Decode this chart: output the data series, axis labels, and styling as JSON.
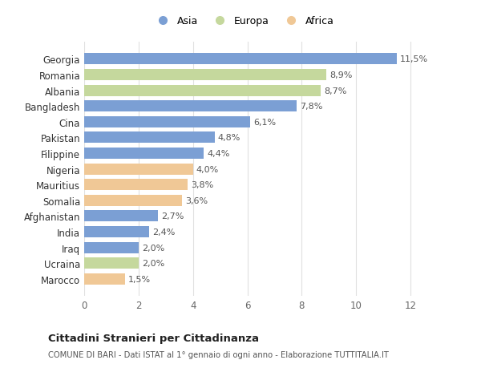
{
  "categories": [
    "Marocco",
    "Ucraina",
    "Iraq",
    "India",
    "Afghanistan",
    "Somalia",
    "Mauritius",
    "Nigeria",
    "Filippine",
    "Pakistan",
    "Cina",
    "Bangladesh",
    "Albania",
    "Romania",
    "Georgia"
  ],
  "values": [
    1.5,
    2.0,
    2.0,
    2.4,
    2.7,
    3.6,
    3.8,
    4.0,
    4.4,
    4.8,
    6.1,
    7.8,
    8.7,
    8.9,
    11.5
  ],
  "labels": [
    "1,5%",
    "2,0%",
    "2,0%",
    "2,4%",
    "2,7%",
    "3,6%",
    "3,8%",
    "4,0%",
    "4,4%",
    "4,8%",
    "6,1%",
    "7,8%",
    "8,7%",
    "8,9%",
    "11,5%"
  ],
  "continents": [
    "Africa",
    "Europa",
    "Asia",
    "Asia",
    "Asia",
    "Africa",
    "Africa",
    "Africa",
    "Asia",
    "Asia",
    "Asia",
    "Asia",
    "Europa",
    "Europa",
    "Asia"
  ],
  "colors": {
    "Asia": "#7b9fd4",
    "Europa": "#c5d89d",
    "Africa": "#f0c896"
  },
  "legend": [
    "Asia",
    "Europa",
    "Africa"
  ],
  "legend_colors": [
    "#7b9fd4",
    "#c5d89d",
    "#f0c896"
  ],
  "title": "Cittadini Stranieri per Cittadinanza",
  "subtitle": "COMUNE DI BARI - Dati ISTAT al 1° gennaio di ogni anno - Elaborazione TUTTITALIA.IT",
  "xlim": [
    0,
    13
  ],
  "xticks": [
    0,
    2,
    4,
    6,
    8,
    10,
    12
  ],
  "background_color": "#ffffff",
  "grid_color": "#e0e0e0"
}
